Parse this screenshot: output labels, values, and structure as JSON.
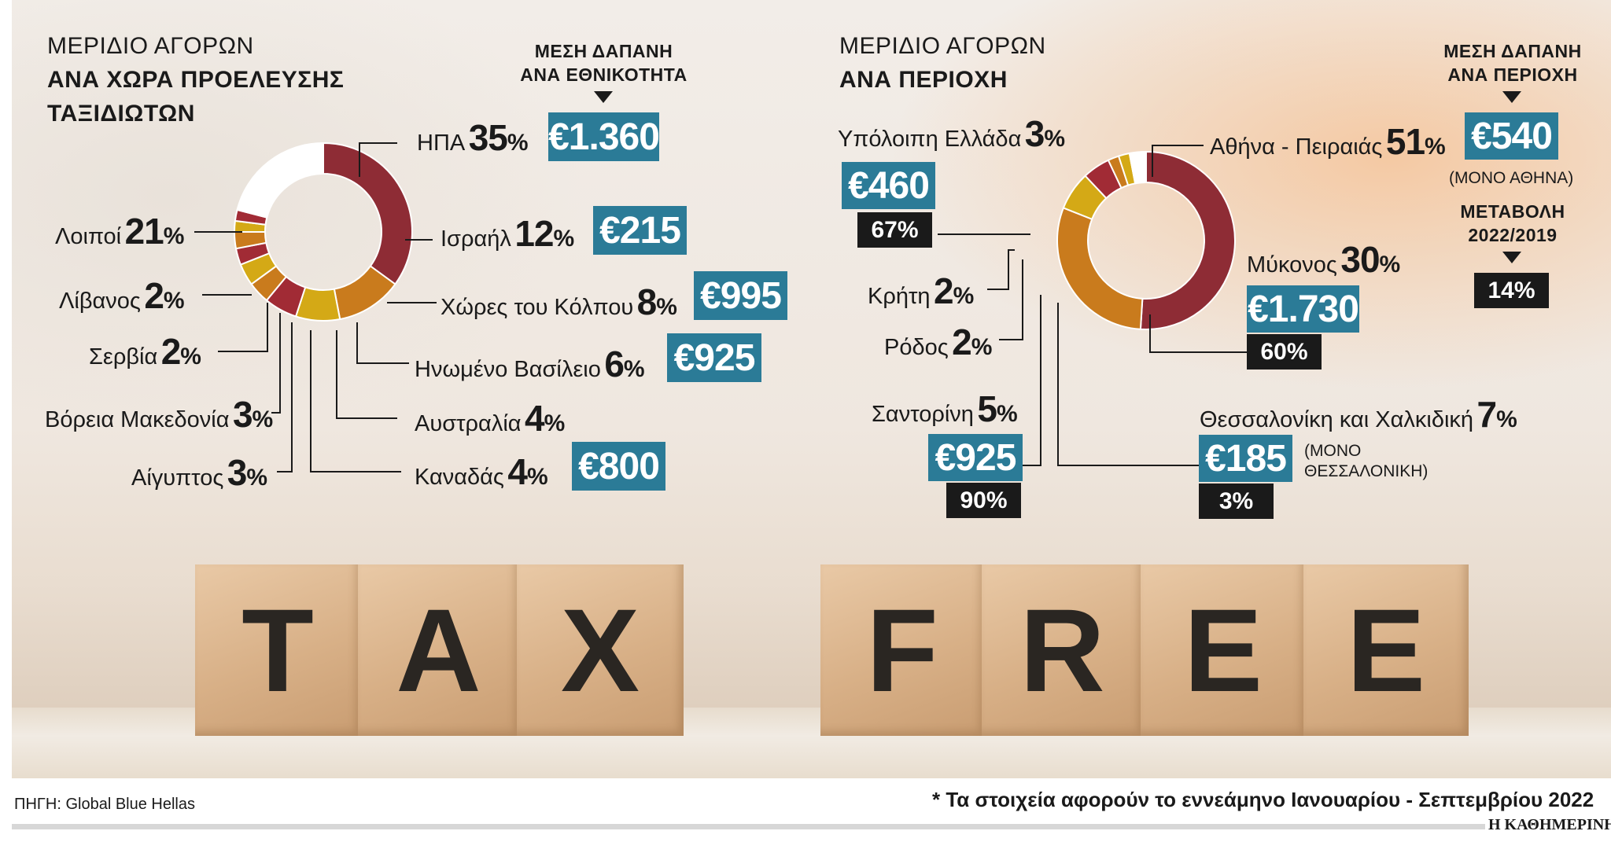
{
  "colors": {
    "us": "#8e2c35",
    "israel": "#c97b1d",
    "gulf": "#d4a916",
    "uk": "#a12b35",
    "australia": "#c97b1d",
    "canada": "#d4a916",
    "egypt": "#a12b35",
    "nmacedonia": "#c97b1d",
    "serbia": "#d4a916",
    "lebanon": "#a12b35",
    "others": "#ffffff",
    "box": "#2b7b97",
    "dark": "#1a1a1a"
  },
  "left": {
    "title_light": "ΜΕΡΙΔΙΟ ΑΓΟΡΩΝ",
    "title_bold_1": "ΑΝΑ ΧΩΡΑ ΠΡΟΕΛΕΥΣΗΣ",
    "title_bold_2": "ΤΑΞΙΔΙΩΤΩΝ",
    "spend_1": "ΜΕΣΗ ΔΑΠΑΝΗ",
    "spend_2": "ΑΝΑ ΕΘΝΙΚΟΤΗΤΑ",
    "labels": {
      "us": "ΗΠΑ",
      "us_pct": "35",
      "israel": "Ισραήλ",
      "israel_pct": "12",
      "gulf": "Χώρες του Κόλπου",
      "gulf_pct": "8",
      "uk": "Ηνωμένο Βασίλειο",
      "uk_pct": "6",
      "australia": "Αυστραλία",
      "australia_pct": "4",
      "canada": "Καναδάς",
      "canada_pct": "4",
      "egypt": "Αίγυπτος",
      "egypt_pct": "3",
      "nmacedonia": "Βόρεια Μακεδονία",
      "nmacedonia_pct": "3",
      "serbia": "Σερβία",
      "serbia_pct": "2",
      "lebanon": "Λίβανος",
      "lebanon_pct": "2",
      "others": "Λοιποί",
      "others_pct": "21",
      "pct_sign": "%"
    },
    "spend": {
      "us": "€1.360",
      "israel": "€215",
      "gulf": "€995",
      "uk": "€925",
      "canada": "€800"
    }
  },
  "right": {
    "title_light": "ΜΕΡΙΔΙΟ ΑΓΟΡΩΝ",
    "title_bold": "ΑΝΑ ΠΕΡΙΟΧΗ",
    "spend_1": "ΜΕΣΗ ΔΑΠΑΝΗ",
    "spend_2": "ΑΝΑ ΠΕΡΙΟΧΗ",
    "change_1": "ΜΕΤΑΒΟΛΗ",
    "change_2": "2022/2019",
    "athens_note": "(ΜΟΝΟ ΑΘΗΝΑ)",
    "thess_note_1": "(ΜΟΝΟ",
    "thess_note_2": "ΘΕΣΣΑΛΟΝΙΚΗ)",
    "labels": {
      "athens": "Αθήνα - Πειραιάς",
      "athens_pct": "51",
      "mykonos": "Μύκονος",
      "mykonos_pct": "30",
      "thess": "Θεσσαλονίκη και Χαλκιδική",
      "thess_pct": "7",
      "santorini": "Σαντορίνη",
      "santorini_pct": "5",
      "rhodes": "Ρόδος",
      "rhodes_pct": "2",
      "crete": "Κρήτη",
      "crete_pct": "2",
      "rest": "Υπόλοιπη Ελλάδα",
      "rest_pct": "3",
      "pct_sign": "%"
    },
    "spend": {
      "athens": "€540",
      "mykonos": "€1.730",
      "thess": "€185",
      "santorini": "€925",
      "rest": "€460"
    },
    "change": {
      "athens": "14%",
      "mykonos": "60%",
      "thess": "3%",
      "santorini": "90%",
      "rest": "67%"
    }
  },
  "photo": {
    "word1": [
      "T",
      "A",
      "X"
    ],
    "word2": [
      "F",
      "R",
      "E",
      "E"
    ]
  },
  "footer": {
    "source": "ΠΗΓΗ: Global Blue Hellas",
    "note": "* Τα στοιχεία αφορούν το εννεάμηνο Ιανουαρίου - Σεπτεμβρίου 2022",
    "brand": "Η ΚΑΘΗΜΕΡΙΝΗ"
  },
  "chart_data": [
    {
      "type": "pie",
      "title": "ΜΕΡΙΔΙΟ ΑΓΟΡΩΝ ΑΝΑ ΧΩΡΑ ΠΡΟΕΛΕΥΣΗΣ ΤΑΞΙΔΙΩΤΩΝ",
      "categories": [
        "ΗΠΑ",
        "Ισραήλ",
        "Χώρες του Κόλπου",
        "Ηνωμένο Βασίλειο",
        "Αυστραλία",
        "Καναδάς",
        "Αίγυπτος",
        "Βόρεια Μακεδονία",
        "Σερβία",
        "Λίβανος",
        "Λοιποί"
      ],
      "keys": [
        "us",
        "israel",
        "gulf",
        "uk",
        "australia",
        "canada",
        "egypt",
        "nmacedonia",
        "serbia",
        "lebanon",
        "others"
      ],
      "values": [
        35,
        12,
        8,
        6,
        4,
        4,
        3,
        3,
        2,
        2,
        21
      ],
      "avg_spend": {
        "ΗΠΑ": "€1.360",
        "Ισραήλ": "€215",
        "Χώρες του Κόλπου": "€995",
        "Ηνωμένο Βασίλειο": "€925",
        "Καναδάς": "€800"
      }
    },
    {
      "type": "pie",
      "title": "ΜΕΡΙΔΙΟ ΑΓΟΡΩΝ ΑΝΑ ΠΕΡΙΟΧΗ",
      "categories": [
        "Αθήνα - Πειραιάς",
        "Μύκονος",
        "Θεσσαλονίκη και Χαλκιδική",
        "Σαντορίνη",
        "Ρόδος",
        "Κρήτη",
        "Υπόλοιπη Ελλάδα"
      ],
      "keys": [
        "athens",
        "mykonos",
        "thess",
        "santorini",
        "rhodes",
        "crete",
        "rest"
      ],
      "values": [
        51,
        30,
        7,
        5,
        2,
        2,
        3
      ],
      "colors": [
        "#8e2c35",
        "#c97b1d",
        "#d4a916",
        "#a12b35",
        "#c97b1d",
        "#d4a916",
        "#ffffff"
      ],
      "avg_spend": {
        "Αθήνα - Πειραιάς": "€540",
        "Μύκονος": "€1.730",
        "Θεσσαλονίκη και Χαλκιδική": "€185",
        "Σαντορίνη": "€925",
        "Υπόλοιπη Ελλάδα": "€460"
      },
      "change_2022_2019": {
        "Αθήνα - Πειραιάς": "14%",
        "Μύκονος": "60%",
        "Θεσσαλονίκη και Χαλκιδική": "3%",
        "Σαντορίνη": "90%",
        "Υπόλοιπη Ελλάδα": "67%"
      }
    }
  ]
}
